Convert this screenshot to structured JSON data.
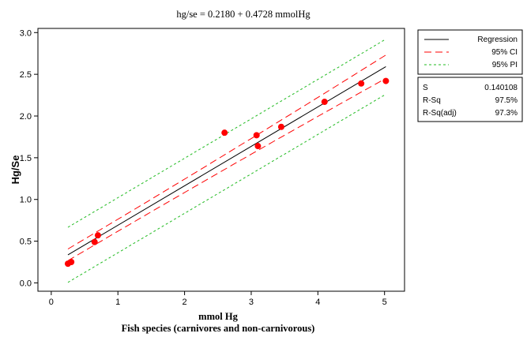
{
  "chart_data": {
    "type": "scatter",
    "title": "hg/se =  0.2180 + 0.4728 mmolHg",
    "xlabel": "mmol Hg",
    "xlabel2": "Fish species (carnivores and non-carnivorous)",
    "ylabel": "Hg/Se",
    "xlim": [
      -0.2,
      5.3
    ],
    "ylim": [
      -0.1,
      3.05
    ],
    "xticks": [
      "0",
      "1",
      "2",
      "3",
      "4",
      "5"
    ],
    "yticks": [
      "0.0",
      "0.5",
      "1.0",
      "1.5",
      "2.0",
      "2.5",
      "3.0"
    ],
    "regression": {
      "intercept": 0.218,
      "slope": 0.4728,
      "x_range": [
        0.25,
        5.02
      ]
    },
    "ci_half_width": {
      "center": 0.15,
      "at_center": 0.07,
      "at_edge": 0.14
    },
    "pi_half_width": 0.33,
    "points": {
      "x": [
        0.25,
        0.3,
        0.65,
        0.7,
        2.6,
        3.08,
        3.1,
        3.45,
        4.1,
        4.65,
        5.02
      ],
      "y": [
        0.23,
        0.25,
        0.49,
        0.57,
        1.8,
        1.77,
        1.64,
        1.87,
        2.17,
        2.39,
        2.42
      ]
    },
    "point_color": "#ff0000",
    "regression_color": "#000000",
    "ci_color": "#ff0000",
    "pi_color": "#22bb22",
    "legend": {
      "items": [
        {
          "label": "Regression",
          "style": "solid",
          "color": "#000000"
        },
        {
          "label": "95% CI",
          "style": "long-dash",
          "color": "#ff0000"
        },
        {
          "label": "95% PI",
          "style": "short-dash",
          "color": "#22bb22"
        }
      ],
      "position": "right"
    },
    "stats": [
      {
        "label": "S",
        "value": "0.140108"
      },
      {
        "label": "R-Sq",
        "value": "97.5%"
      },
      {
        "label": "R-Sq(adj)",
        "value": "97.3%"
      }
    ]
  }
}
